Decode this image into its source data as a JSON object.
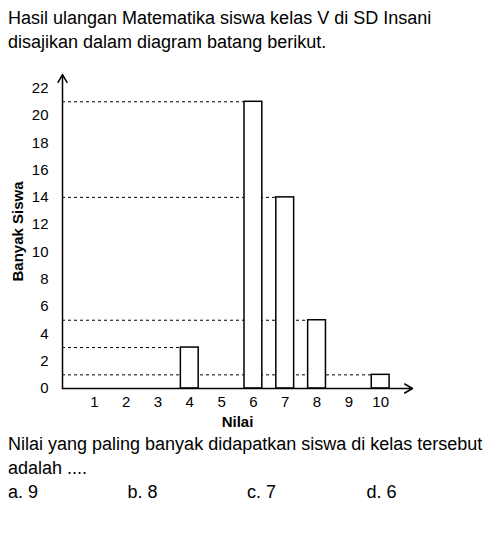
{
  "header": {
    "text": "Hasil ulangan Matematika siswa kelas V di SD Insani disajikan dalam diagram batang berikut."
  },
  "chart_data": {
    "type": "bar",
    "x_label": "Nilai",
    "y_label": "Banyak Siswa",
    "x": [
      4,
      6,
      7,
      8,
      10
    ],
    "values": [
      3,
      21,
      14,
      5,
      1
    ],
    "color": "#ffffff",
    "xlim": [
      0,
      11
    ],
    "xticks": [
      1,
      2,
      3,
      4,
      5,
      6,
      7,
      8,
      9,
      10
    ],
    "ylim": [
      0,
      23
    ],
    "yticks": [
      0,
      2,
      4,
      6,
      8,
      10,
      12,
      14,
      16,
      18,
      20,
      22
    ]
  },
  "question": {
    "text": "Nilai yang paling banyak didapatkan siswa di kelas tersebut adalah ....",
    "options": [
      "a. 9",
      "b. 8",
      "c. 7",
      "d. 6"
    ]
  }
}
